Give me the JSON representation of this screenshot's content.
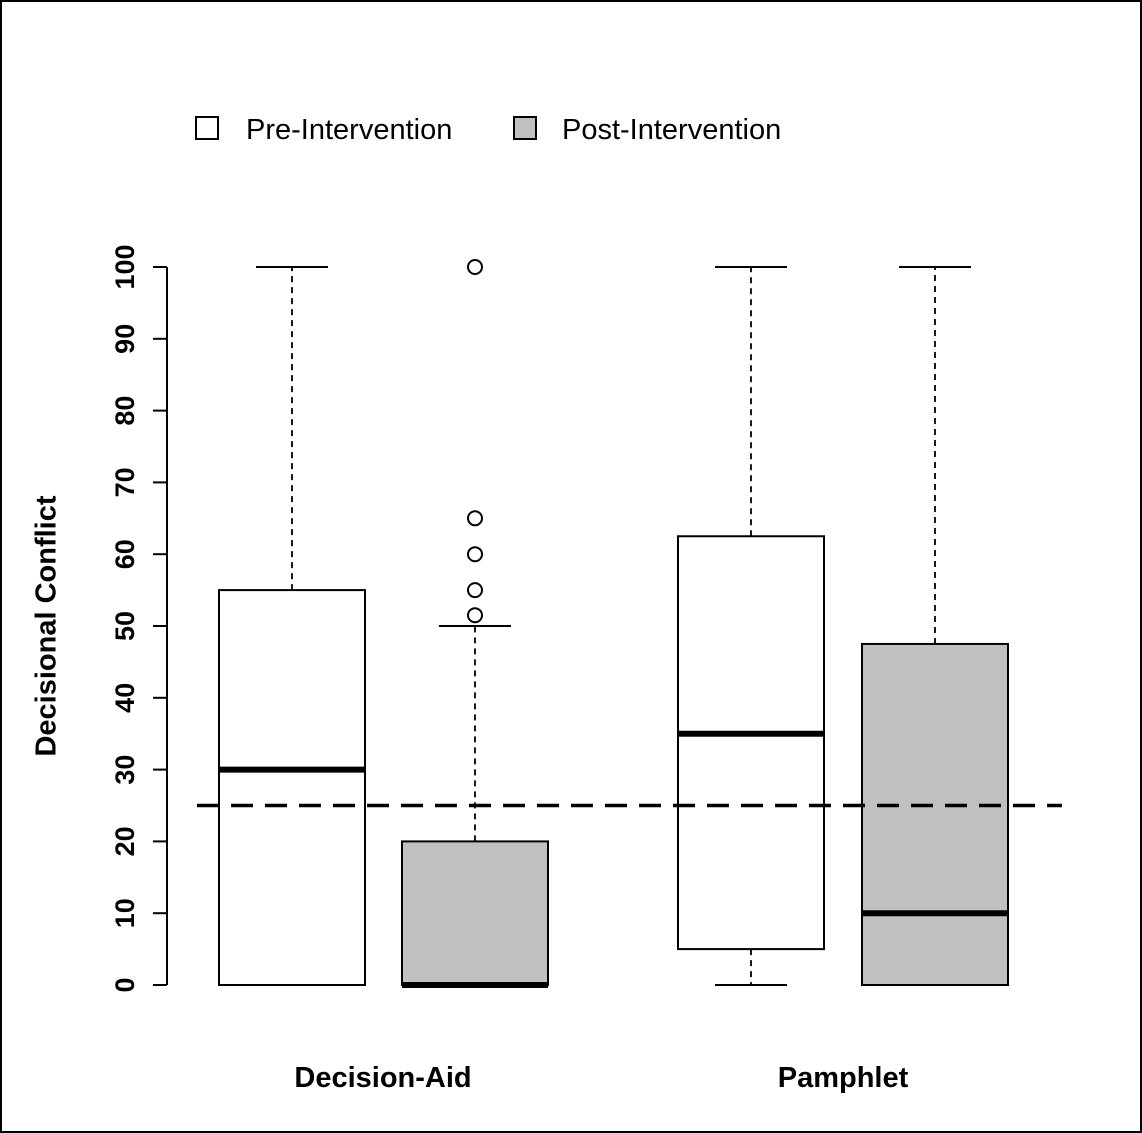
{
  "chart_data": {
    "type": "box",
    "ylabel": "Decisional Conflict",
    "xlabel": "",
    "ylim": [
      0,
      100
    ],
    "yticks": [
      0,
      10,
      20,
      30,
      40,
      50,
      60,
      70,
      80,
      90,
      100
    ],
    "groups": [
      "Decision-Aid",
      "Pamphlet"
    ],
    "legend": {
      "position": "top-left",
      "entries": [
        {
          "label": "Pre-Intervention",
          "color": "#ffffff"
        },
        {
          "label": "Post-Intervention",
          "color": "#c0c0c0"
        }
      ]
    },
    "reference_line": {
      "y": 25,
      "style": "dashed"
    },
    "boxes": [
      {
        "group": "Decision-Aid",
        "series": "Pre-Intervention",
        "min": 0,
        "q1": 0,
        "median": 30,
        "q3": 55,
        "max": 100,
        "outliers": []
      },
      {
        "group": "Decision-Aid",
        "series": "Post-Intervention",
        "min": 0,
        "q1": 0,
        "median": 0,
        "q3": 20,
        "max": 50,
        "outliers": [
          51.5,
          55,
          60,
          65,
          100
        ]
      },
      {
        "group": "Pamphlet",
        "series": "Pre-Intervention",
        "min": 0,
        "q1": 5,
        "median": 35,
        "q3": 62.5,
        "max": 100,
        "outliers": []
      },
      {
        "group": "Pamphlet",
        "series": "Post-Intervention",
        "min": 0,
        "q1": 0,
        "median": 10,
        "q3": 47.5,
        "max": 100,
        "outliers": []
      }
    ]
  }
}
